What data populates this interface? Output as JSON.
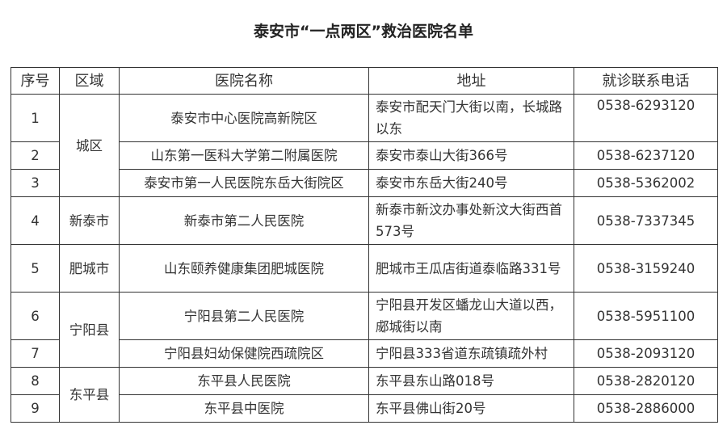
{
  "title": "泰安市“一点两区”救治医院名单",
  "table": {
    "headers": [
      "序号",
      "区域",
      "医院名称",
      "地址",
      "就诊联系电话"
    ],
    "rows": [
      {
        "no": "1",
        "region": "城区",
        "hospital": "泰安市中心医院高新院区",
        "address": "泰安市配天门大街以南，长城路以东",
        "phone": "0538-6293120"
      },
      {
        "no": "2",
        "region": "城区",
        "hospital": "山东第一医科大学第二附属医院",
        "address": "泰安市泰山大街366号",
        "phone": "0538-6237120"
      },
      {
        "no": "3",
        "region": "城区",
        "hospital": "泰安市第一人民医院东岳大街院区",
        "address": "泰安市东岳大街240号",
        "phone": "0538-5362002"
      },
      {
        "no": "4",
        "region": "新泰市",
        "hospital": "新泰市第二人民医院",
        "address": "新泰市新汶办事处新汶大街西首573号",
        "phone": "0538-7337345"
      },
      {
        "no": "5",
        "region": "肥城市",
        "hospital": "山东颐养健康集团肥城医院",
        "address": "肥城市王瓜店街道泰临路331号",
        "phone": "0538-3159240"
      },
      {
        "no": "6",
        "region": "宁阳县",
        "hospital": "宁阳县第二人民医院",
        "address": "宁阳县开发区蟠龙山大道以西，郕城街以南",
        "phone": "0538-5951100"
      },
      {
        "no": "7",
        "region": "宁阳县",
        "hospital": "宁阳县妇幼保健院西疏院区",
        "address": "宁阳县333省道东疏镇疏外村",
        "phone": "0538-2093120"
      },
      {
        "no": "8",
        "region": "东平县",
        "hospital": "东平县人民医院",
        "address": "东平县东山路018号",
        "phone": "0538-2820120"
      },
      {
        "no": "9",
        "region": "东平县",
        "hospital": "东平县中医院",
        "address": "东平县佛山街20号",
        "phone": "0538-2886000"
      }
    ]
  }
}
